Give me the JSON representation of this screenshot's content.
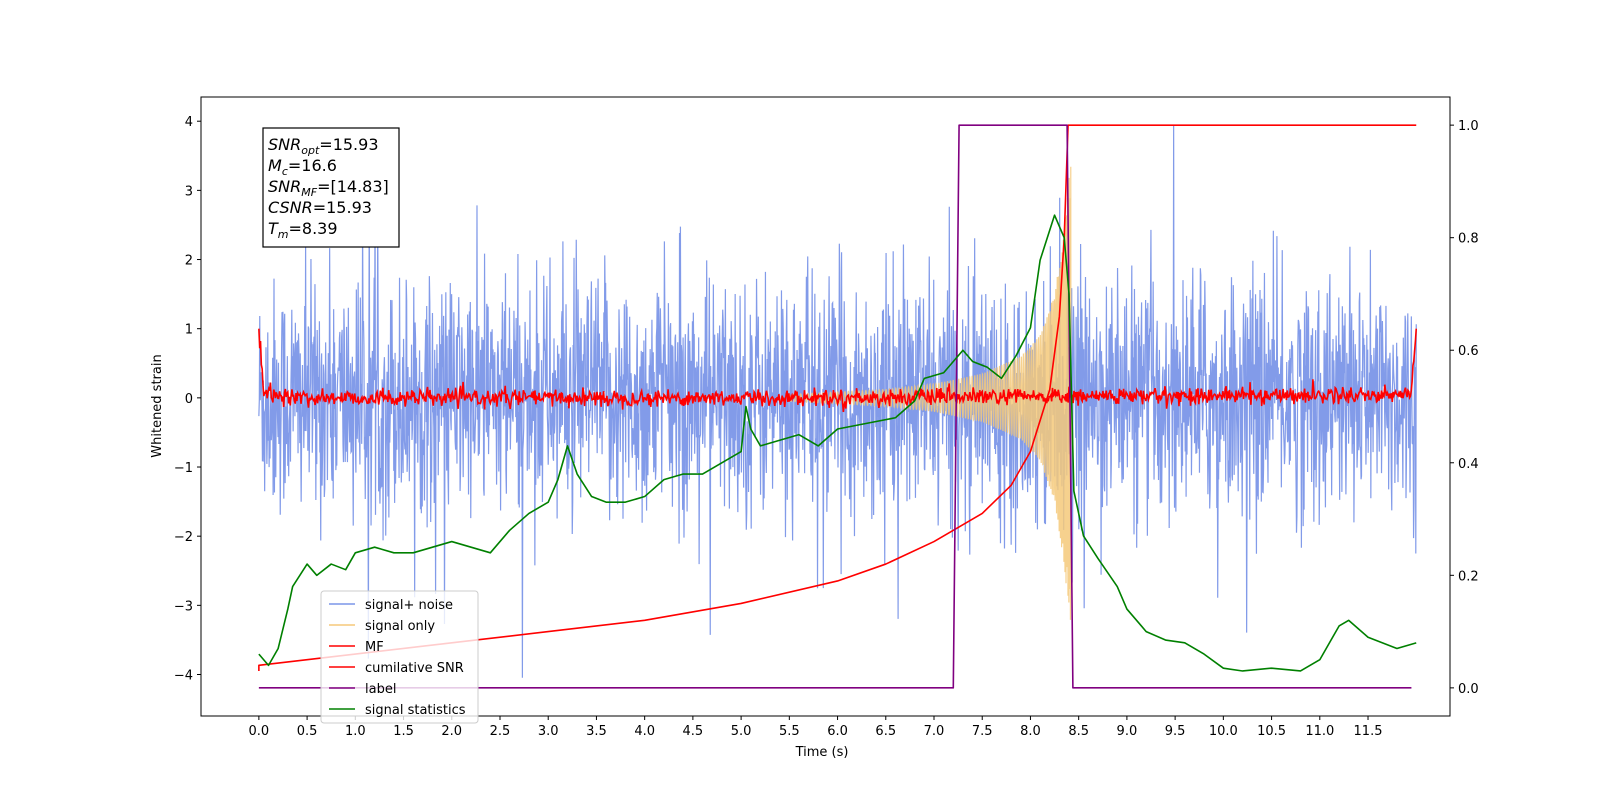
{
  "chart_data": {
    "type": "line",
    "xlabel": "Time (s)",
    "ylabel": "Whitened strain",
    "xlim": [
      -0.6,
      12.35
    ],
    "ylim": [
      -4.6,
      4.35
    ],
    "y2lim": [
      -0.05,
      1.05
    ],
    "x_ticks": [
      "0.0",
      "0.5",
      "1.0",
      "1.5",
      "2.0",
      "2.5",
      "3.0",
      "3.5",
      "4.0",
      "4.5",
      "5.0",
      "5.5",
      "6.0",
      "6.5",
      "7.0",
      "7.5",
      "8.0",
      "8.5",
      "9.0",
      "9.5",
      "10.0",
      "10.5",
      "11.0",
      "11.5"
    ],
    "y_ticks": [
      "4",
      "3",
      "2",
      "1",
      "0",
      "−1",
      "−2",
      "−3",
      "−4"
    ],
    "y2_ticks": [
      "1.0",
      "0.8",
      "0.6",
      "0.4",
      "0.2",
      "0.0"
    ],
    "grid": false,
    "legend_position": "lower-left",
    "annotation": [
      {
        "label": "SNR",
        "sub": "opt",
        "value": "=15.93"
      },
      {
        "label": "M",
        "sub": "c",
        "value": "=16.6"
      },
      {
        "label": "SNR",
        "sub": "MF",
        "value": "=[14.83]"
      },
      {
        "label": "CSNR",
        "sub": "",
        "value": "=15.93"
      },
      {
        "label": "T",
        "sub": "m",
        "value": "=8.39"
      }
    ],
    "series": [
      {
        "name": "signal+ noise",
        "color": "#7b96e8",
        "axis": "left",
        "description_of_envelope": "noise band roughly ±2, occasional spikes to about ±3.9",
        "x_range": [
          0.0,
          12.0
        ],
        "approx_band": [
          -2.0,
          2.0
        ]
      },
      {
        "name": "signal only",
        "color": "#f5c97a",
        "axis": "left",
        "chirp_start": 5.5,
        "chirp_end": 8.42,
        "envelope": [
          [
            5.5,
            0.05
          ],
          [
            6.5,
            0.12
          ],
          [
            7.0,
            0.2
          ],
          [
            7.5,
            0.35
          ],
          [
            7.9,
            0.6
          ],
          [
            8.1,
            0.9
          ],
          [
            8.25,
            1.5
          ],
          [
            8.35,
            2.4
          ],
          [
            8.42,
            3.5
          ]
        ]
      },
      {
        "name": "MF",
        "color": "#ff0000",
        "axis": "left",
        "values": [
          [
            0.0,
            1.0
          ],
          [
            0.05,
            0.05
          ],
          [
            0.5,
            0.0
          ],
          [
            6.0,
            0.0
          ],
          [
            11.95,
            0.05
          ],
          [
            12.0,
            1.0
          ]
        ],
        "noise_amp": 0.1
      },
      {
        "name": "cumilative SNR",
        "color": "#ff0000",
        "axis": "right",
        "values": [
          [
            0.0,
            0.03
          ],
          [
            0.0,
            0.04
          ],
          [
            1.0,
            0.06
          ],
          [
            2.0,
            0.08
          ],
          [
            3.0,
            0.1
          ],
          [
            4.0,
            0.12
          ],
          [
            5.0,
            0.15
          ],
          [
            6.0,
            0.19
          ],
          [
            6.5,
            0.22
          ],
          [
            7.0,
            0.26
          ],
          [
            7.5,
            0.31
          ],
          [
            7.8,
            0.36
          ],
          [
            8.0,
            0.42
          ],
          [
            8.2,
            0.53
          ],
          [
            8.3,
            0.66
          ],
          [
            8.35,
            0.8
          ],
          [
            8.39,
            1.0
          ],
          [
            12.0,
            1.0
          ]
        ]
      },
      {
        "name": "label",
        "color": "#800080",
        "axis": "right",
        "values": [
          [
            0.0,
            0.0
          ],
          [
            7.2,
            0.0
          ],
          [
            7.26,
            1.0
          ],
          [
            8.38,
            1.0
          ],
          [
            8.44,
            0.0
          ],
          [
            11.95,
            0.0
          ]
        ]
      },
      {
        "name": "signal statistics",
        "color": "#008000",
        "axis": "right",
        "values": [
          [
            0.0,
            0.06
          ],
          [
            0.1,
            0.04
          ],
          [
            0.2,
            0.07
          ],
          [
            0.3,
            0.14
          ],
          [
            0.35,
            0.18
          ],
          [
            0.5,
            0.22
          ],
          [
            0.6,
            0.2
          ],
          [
            0.75,
            0.22
          ],
          [
            0.9,
            0.21
          ],
          [
            1.0,
            0.24
          ],
          [
            1.2,
            0.25
          ],
          [
            1.4,
            0.24
          ],
          [
            1.6,
            0.24
          ],
          [
            1.8,
            0.25
          ],
          [
            2.0,
            0.26
          ],
          [
            2.2,
            0.25
          ],
          [
            2.4,
            0.24
          ],
          [
            2.6,
            0.28
          ],
          [
            2.8,
            0.31
          ],
          [
            3.0,
            0.33
          ],
          [
            3.1,
            0.37
          ],
          [
            3.2,
            0.43
          ],
          [
            3.3,
            0.38
          ],
          [
            3.45,
            0.34
          ],
          [
            3.6,
            0.33
          ],
          [
            3.8,
            0.33
          ],
          [
            4.0,
            0.34
          ],
          [
            4.2,
            0.37
          ],
          [
            4.4,
            0.38
          ],
          [
            4.6,
            0.38
          ],
          [
            4.8,
            0.4
          ],
          [
            5.0,
            0.42
          ],
          [
            5.05,
            0.5
          ],
          [
            5.1,
            0.46
          ],
          [
            5.2,
            0.43
          ],
          [
            5.4,
            0.44
          ],
          [
            5.6,
            0.45
          ],
          [
            5.8,
            0.43
          ],
          [
            6.0,
            0.46
          ],
          [
            6.3,
            0.47
          ],
          [
            6.6,
            0.48
          ],
          [
            6.8,
            0.51
          ],
          [
            6.9,
            0.55
          ],
          [
            7.1,
            0.56
          ],
          [
            7.3,
            0.6
          ],
          [
            7.4,
            0.58
          ],
          [
            7.55,
            0.57
          ],
          [
            7.7,
            0.55
          ],
          [
            7.85,
            0.59
          ],
          [
            8.0,
            0.64
          ],
          [
            8.1,
            0.76
          ],
          [
            8.25,
            0.84
          ],
          [
            8.35,
            0.8
          ],
          [
            8.4,
            0.7
          ],
          [
            8.45,
            0.35
          ],
          [
            8.55,
            0.27
          ],
          [
            8.7,
            0.23
          ],
          [
            8.9,
            0.18
          ],
          [
            9.0,
            0.14
          ],
          [
            9.2,
            0.1
          ],
          [
            9.4,
            0.085
          ],
          [
            9.6,
            0.08
          ],
          [
            9.8,
            0.06
          ],
          [
            10.0,
            0.035
          ],
          [
            10.2,
            0.03
          ],
          [
            10.5,
            0.035
          ],
          [
            10.8,
            0.03
          ],
          [
            11.0,
            0.05
          ],
          [
            11.2,
            0.11
          ],
          [
            11.3,
            0.12
          ],
          [
            11.5,
            0.09
          ],
          [
            11.8,
            0.07
          ],
          [
            12.0,
            0.08
          ]
        ]
      }
    ]
  }
}
